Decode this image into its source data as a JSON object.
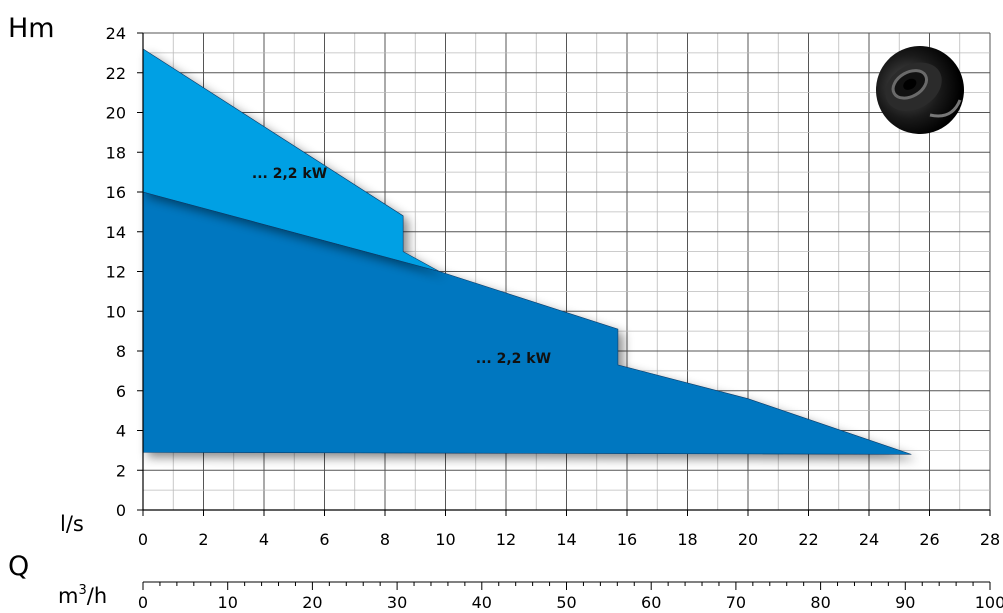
{
  "chart_data": {
    "type": "area",
    "y_axis": {
      "label": "Hm",
      "range": [
        0,
        24
      ],
      "ticks": [
        0,
        2,
        4,
        6,
        8,
        10,
        12,
        14,
        16,
        18,
        20,
        22,
        24
      ]
    },
    "x_axis_primary": {
      "label": "l/s",
      "range": [
        0,
        28
      ],
      "ticks": [
        0,
        2,
        4,
        6,
        8,
        10,
        12,
        14,
        16,
        18,
        20,
        22,
        24,
        26,
        28
      ]
    },
    "x_axis_secondary": {
      "label_prefix": "m",
      "label_sup": "3",
      "label_suffix": "/h",
      "range": [
        0,
        100
      ],
      "ticks": [
        0,
        10,
        20,
        30,
        40,
        50,
        60,
        70,
        80,
        90,
        100
      ]
    },
    "q_label": "Q",
    "grid": true,
    "series": [
      {
        "label": "... 2,2 kW",
        "color": "#0077c0",
        "label_pos": [
          11,
          7.4
        ],
        "points": [
          [
            0,
            16.0
          ],
          [
            9.8,
            12.0
          ],
          [
            15.7,
            9.1
          ],
          [
            15.7,
            7.3
          ],
          [
            20,
            5.6
          ],
          [
            25.4,
            2.8
          ],
          [
            0,
            2.9
          ]
        ]
      },
      {
        "label": "... 2,2 kW",
        "color": "#00a0e4",
        "label_pos": [
          3.6,
          16.7
        ],
        "points": [
          [
            0,
            23.2
          ],
          [
            8.6,
            14.8
          ],
          [
            8.6,
            13.0
          ],
          [
            9.8,
            12.0
          ],
          [
            0,
            16.0
          ]
        ]
      }
    ]
  },
  "product_icon": "pump-impeller-icon"
}
